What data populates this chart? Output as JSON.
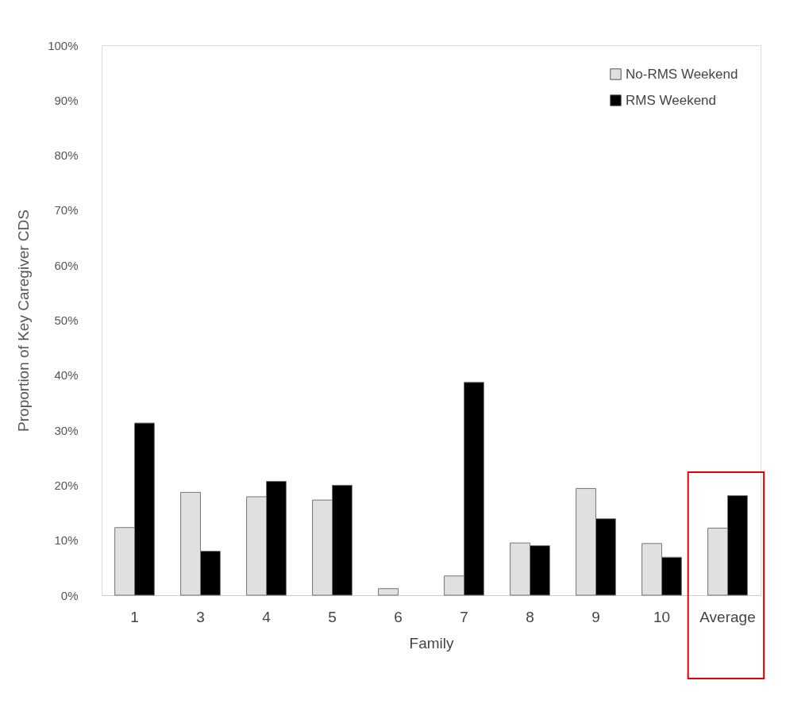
{
  "chart_data": {
    "type": "bar",
    "xlabel": "Family",
    "ylabel": "Proportion of Key Caregiver CDS",
    "categories": [
      "1",
      "3",
      "4",
      "5",
      "6",
      "7",
      "8",
      "9",
      "10",
      "Average"
    ],
    "series": [
      {
        "name": "No-RMS Weekend",
        "color": "#e0e0e0",
        "values": [
          12.3,
          18.7,
          17.9,
          17.3,
          1.2,
          3.5,
          9.5,
          19.4,
          9.4,
          12.2
        ]
      },
      {
        "name": "RMS Weekend",
        "color": "#000000",
        "values": [
          31.3,
          8.0,
          20.7,
          20.0,
          null,
          38.7,
          9.0,
          13.9,
          6.9,
          18.1
        ]
      }
    ],
    "ylim": [
      0,
      100
    ],
    "yticks": [
      {
        "value": 0,
        "label": "0%"
      },
      {
        "value": 10,
        "label": "10%"
      },
      {
        "value": 20,
        "label": "20%"
      },
      {
        "value": 30,
        "label": "30%"
      },
      {
        "value": 40,
        "label": "40%"
      },
      {
        "value": 50,
        "label": "50%"
      },
      {
        "value": 60,
        "label": "60%"
      },
      {
        "value": 70,
        "label": "70%"
      },
      {
        "value": 80,
        "label": "80%"
      },
      {
        "value": 90,
        "label": "90%"
      },
      {
        "value": 100,
        "label": "100%"
      }
    ],
    "legend": "top right",
    "grid": false
  }
}
